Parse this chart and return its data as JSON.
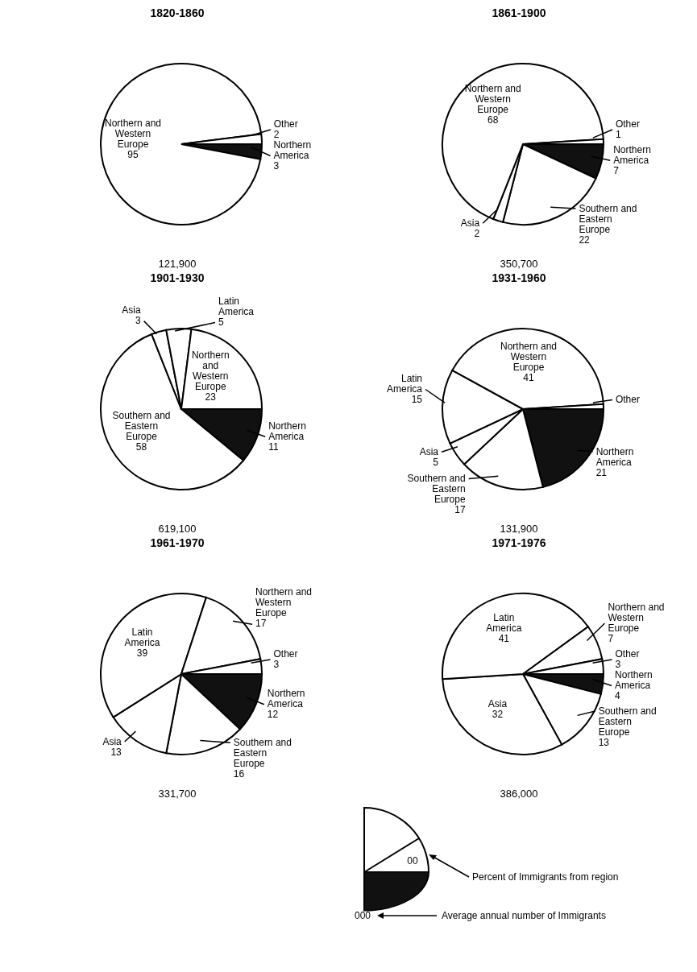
{
  "chart_data": [
    {
      "type": "pie",
      "title": "1820-1860",
      "categories": [
        "Northern America",
        "Northern and Western Europe",
        "Other"
      ],
      "values": [
        3,
        95,
        2
      ],
      "colors": [
        "#111111",
        "#ffffff",
        "#ffffff"
      ],
      "data_labels": true,
      "annotations": [
        "121,900"
      ]
    },
    {
      "type": "pie",
      "title": "1861-1900",
      "categories": [
        "Northern America",
        "Southern and Eastern Europe",
        "Asia",
        "Northern and Western Europe",
        "Other"
      ],
      "values": [
        7,
        22,
        2,
        68,
        1
      ],
      "colors": [
        "#111111",
        "#ffffff",
        "#ffffff",
        "#ffffff",
        "#ffffff"
      ],
      "data_labels": true,
      "annotations": [
        "350,700"
      ]
    },
    {
      "type": "pie",
      "title": "1901-1930",
      "categories": [
        "Northern America",
        "Southern and Eastern Europe",
        "Asia",
        "Latin America",
        "Northern and Western Europe"
      ],
      "values": [
        11,
        58,
        3,
        5,
        23
      ],
      "colors": [
        "#111111",
        "#ffffff",
        "#ffffff",
        "#ffffff",
        "#ffffff"
      ],
      "data_labels": true,
      "annotations": [
        "619,100"
      ]
    },
    {
      "type": "pie",
      "title": "1931-1960",
      "categories": [
        "Northern America",
        "Southern and Eastern Europe",
        "Asia",
        "Latin America",
        "Northern and Western Europe",
        "Other"
      ],
      "values": [
        21,
        17,
        5,
        15,
        41,
        1
      ],
      "colors": [
        "#111111",
        "#ffffff",
        "#ffffff",
        "#ffffff",
        "#ffffff",
        "#ffffff"
      ],
      "value_labels": [
        "21",
        "17",
        "5",
        "15",
        "41",
        null
      ],
      "annotations": [
        "131,900"
      ]
    },
    {
      "type": "pie",
      "title": "1961-1970",
      "categories": [
        "Northern America",
        "Southern and Eastern Europe",
        "Asia",
        "Latin America",
        "Northern and Western Europe",
        "Other"
      ],
      "values": [
        12,
        16,
        13,
        39,
        17,
        3
      ],
      "colors": [
        "#111111",
        "#ffffff",
        "#ffffff",
        "#ffffff",
        "#ffffff",
        "#ffffff"
      ],
      "data_labels": true,
      "annotations": [
        "331,700"
      ]
    },
    {
      "type": "pie",
      "title": "1971-1976",
      "categories": [
        "Northern America",
        "Southern and Eastern Europe",
        "Asia",
        "Latin America",
        "Northern and Western Europe",
        "Other"
      ],
      "values": [
        4,
        13,
        32,
        41,
        7,
        3
      ],
      "colors": [
        "#111111",
        "#ffffff",
        "#ffffff",
        "#ffffff",
        "#ffffff",
        "#ffffff"
      ],
      "data_labels": true,
      "annotations": [
        "386,000",
        "00",
        "Percent of Immigrants from region",
        "000",
        "Average annual number of Immigrants"
      ]
    }
  ]
}
